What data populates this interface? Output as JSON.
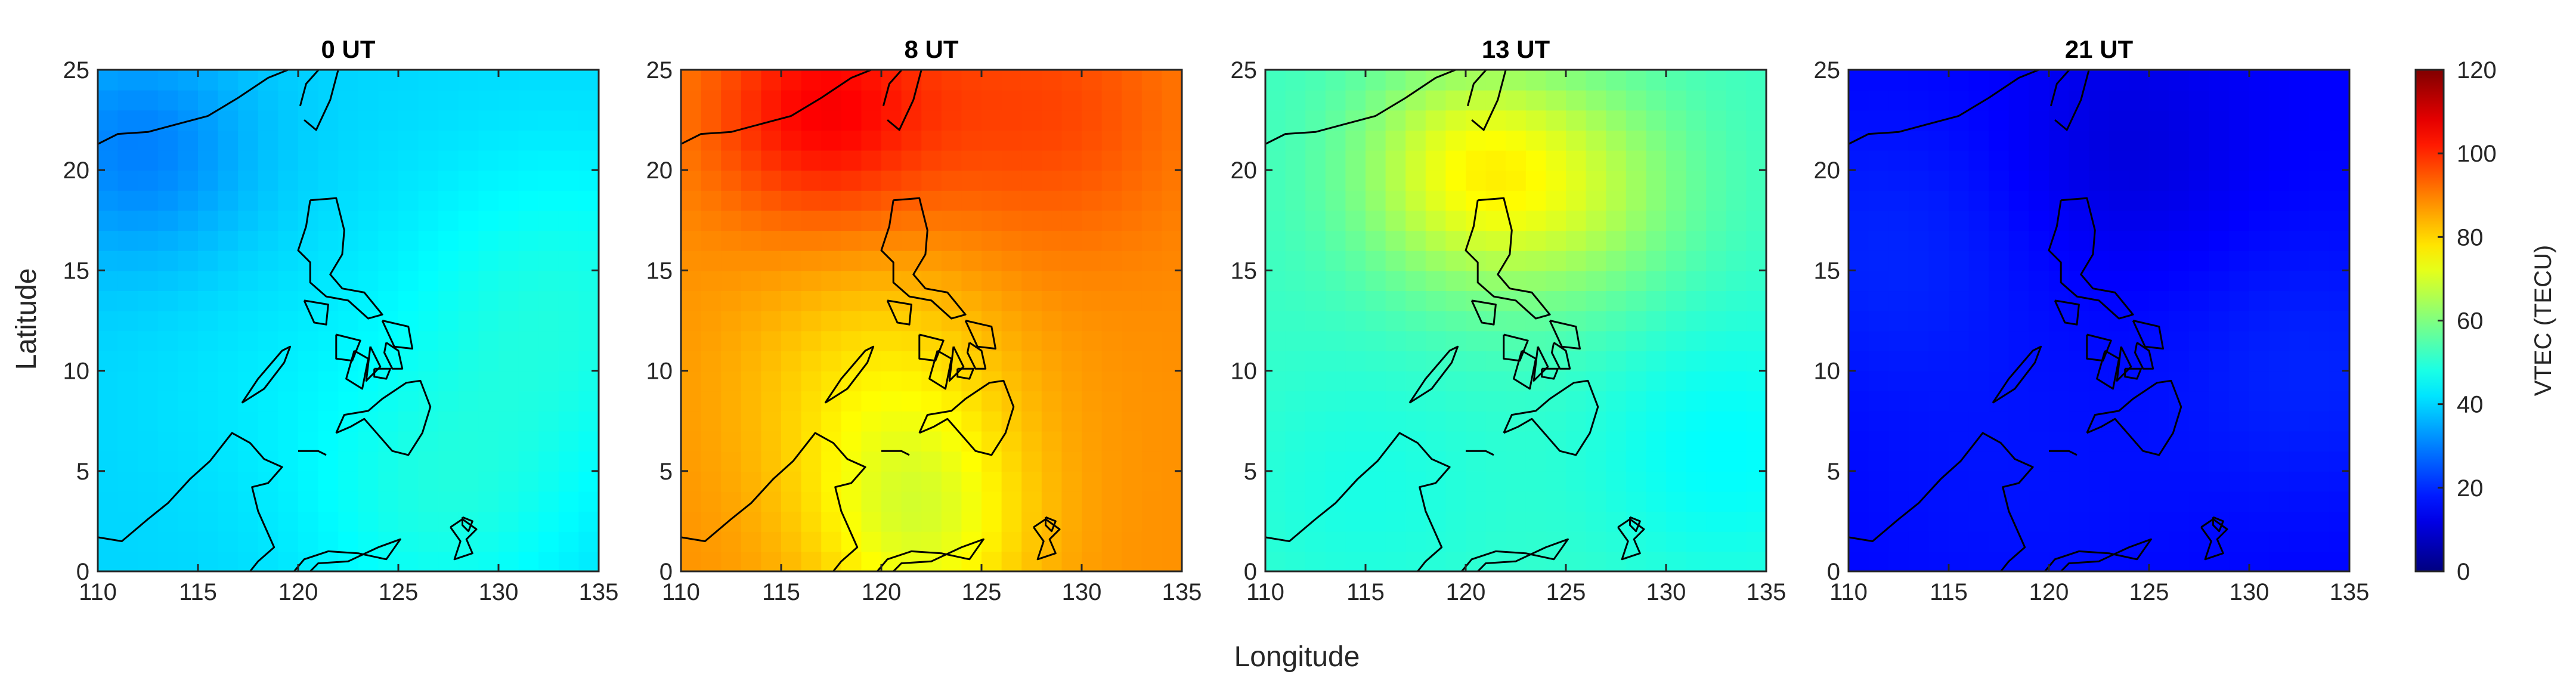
{
  "chart_data": {
    "type": "heatmap",
    "xlabel": "Longitude",
    "ylabel": "Latitude",
    "xlim": [
      110,
      135
    ],
    "ylim": [
      0,
      25
    ],
    "x_ticks": [
      110,
      115,
      120,
      125,
      130,
      135
    ],
    "y_ticks": [
      0,
      5,
      10,
      15,
      20,
      25
    ],
    "colormap": "jet",
    "colorbar": {
      "label": "VTEC (TECU)",
      "range": [
        0,
        120
      ],
      "ticks": [
        0,
        20,
        40,
        60,
        80,
        100,
        120
      ],
      "placement": "right"
    },
    "panels": [
      {
        "title": "0 UT",
        "base": 40,
        "features": [
          {
            "lon": 112,
            "lat": 21,
            "value": 30,
            "spread": 4
          },
          {
            "lon": 133,
            "lat": 13,
            "value": 48,
            "spread": 6
          },
          {
            "lon": 127,
            "lat": 3,
            "value": 47,
            "spread": 5
          },
          {
            "lon": 118,
            "lat": 10,
            "value": 42,
            "spread": 5
          }
        ]
      },
      {
        "title": "8 UT",
        "base": 88,
        "features": [
          {
            "lon": 117,
            "lat": 23,
            "value": 105,
            "spread": 4
          },
          {
            "lon": 128,
            "lat": 23,
            "value": 97,
            "spread": 5
          },
          {
            "lon": 120,
            "lat": 9,
            "value": 78,
            "spread": 5
          },
          {
            "lon": 122,
            "lat": 2,
            "value": 74,
            "spread": 4
          }
        ]
      },
      {
        "title": "13 UT",
        "base": 52,
        "features": [
          {
            "lon": 120,
            "lat": 20,
            "value": 72,
            "spread": 4
          },
          {
            "lon": 126,
            "lat": 19,
            "value": 64,
            "spread": 4
          },
          {
            "lon": 115,
            "lat": 4,
            "value": 48,
            "spread": 5
          },
          {
            "lon": 133,
            "lat": 6,
            "value": 45,
            "spread": 5
          }
        ]
      },
      {
        "title": "21 UT",
        "base": 15,
        "features": [
          {
            "lon": 124,
            "lat": 21,
            "value": 11,
            "spread": 4
          },
          {
            "lon": 112,
            "lat": 16,
            "value": 19,
            "spread": 5
          },
          {
            "lon": 133,
            "lat": 10,
            "value": 19,
            "spread": 5
          },
          {
            "lon": 118,
            "lat": 4,
            "value": 17,
            "spread": 6
          }
        ]
      }
    ],
    "coastlines": [
      {
        "name": "south-china-coast",
        "points": [
          [
            110,
            21.3
          ],
          [
            111,
            21.8
          ],
          [
            112.5,
            21.9
          ],
          [
            114,
            22.3
          ],
          [
            115.5,
            22.7
          ],
          [
            117,
            23.6
          ],
          [
            118.5,
            24.6
          ],
          [
            119.5,
            25
          ]
        ]
      },
      {
        "name": "taiwan",
        "points": [
          [
            120.3,
            22.5
          ],
          [
            120.9,
            22.0
          ],
          [
            121.6,
            23.5
          ],
          [
            122.0,
            25.0
          ],
          [
            121.2,
            25.2
          ],
          [
            120.4,
            24.3
          ],
          [
            120.1,
            23.2
          ]
        ]
      },
      {
        "name": "luzon",
        "points": [
          [
            120.6,
            18.5
          ],
          [
            121.9,
            18.6
          ],
          [
            122.3,
            17.0
          ],
          [
            122.2,
            15.8
          ],
          [
            121.6,
            14.8
          ],
          [
            122.2,
            14.1
          ],
          [
            123.3,
            13.9
          ],
          [
            124.2,
            12.8
          ],
          [
            123.5,
            12.6
          ],
          [
            122.5,
            13.5
          ],
          [
            121.4,
            13.7
          ],
          [
            120.6,
            14.4
          ],
          [
            120.6,
            15.4
          ],
          [
            120.0,
            16.0
          ],
          [
            120.4,
            17.2
          ],
          [
            120.6,
            18.5
          ]
        ]
      },
      {
        "name": "mindoro",
        "points": [
          [
            120.3,
            13.5
          ],
          [
            121.5,
            13.3
          ],
          [
            121.4,
            12.3
          ],
          [
            120.8,
            12.4
          ],
          [
            120.3,
            13.5
          ]
        ]
      },
      {
        "name": "panay",
        "points": [
          [
            121.9,
            11.8
          ],
          [
            123.1,
            11.5
          ],
          [
            122.7,
            10.5
          ],
          [
            121.9,
            10.6
          ],
          [
            121.9,
            11.8
          ]
        ]
      },
      {
        "name": "negros",
        "points": [
          [
            122.8,
            11.0
          ],
          [
            123.5,
            10.6
          ],
          [
            123.2,
            9.1
          ],
          [
            122.4,
            9.6
          ],
          [
            122.8,
            11.0
          ]
        ]
      },
      {
        "name": "cebu",
        "points": [
          [
            123.6,
            11.2
          ],
          [
            124.1,
            10.2
          ],
          [
            123.4,
            9.5
          ],
          [
            123.6,
            11.2
          ]
        ]
      },
      {
        "name": "samar",
        "points": [
          [
            124.2,
            12.5
          ],
          [
            125.5,
            12.2
          ],
          [
            125.7,
            11.1
          ],
          [
            124.8,
            11.2
          ],
          [
            124.2,
            12.5
          ]
        ]
      },
      {
        "name": "leyte",
        "points": [
          [
            124.4,
            11.4
          ],
          [
            125.0,
            11.0
          ],
          [
            125.2,
            10.1
          ],
          [
            124.7,
            10.1
          ],
          [
            124.3,
            10.9
          ],
          [
            124.4,
            11.4
          ]
        ]
      },
      {
        "name": "bohol",
        "points": [
          [
            123.8,
            10.1
          ],
          [
            124.6,
            10.1
          ],
          [
            124.4,
            9.6
          ],
          [
            123.8,
            9.7
          ],
          [
            123.8,
            10.1
          ]
        ]
      },
      {
        "name": "palawan",
        "points": [
          [
            117.2,
            8.4
          ],
          [
            118.3,
            9.1
          ],
          [
            119.3,
            10.4
          ],
          [
            119.6,
            11.2
          ],
          [
            119.2,
            11.0
          ],
          [
            118.0,
            9.6
          ],
          [
            117.2,
            8.4
          ]
        ]
      },
      {
        "name": "mindanao",
        "points": [
          [
            121.9,
            6.9
          ],
          [
            122.3,
            7.8
          ],
          [
            123.5,
            8.0
          ],
          [
            124.2,
            8.6
          ],
          [
            125.4,
            9.4
          ],
          [
            126.1,
            9.5
          ],
          [
            126.6,
            8.2
          ],
          [
            126.2,
            6.9
          ],
          [
            125.5,
            5.8
          ],
          [
            124.7,
            6.0
          ],
          [
            124.0,
            6.8
          ],
          [
            123.3,
            7.6
          ],
          [
            122.6,
            7.2
          ],
          [
            121.9,
            6.9
          ]
        ]
      },
      {
        "name": "borneo-north",
        "points": [
          [
            110,
            1.7
          ],
          [
            111.2,
            1.5
          ],
          [
            112.5,
            2.6
          ],
          [
            113.5,
            3.4
          ],
          [
            114.6,
            4.6
          ],
          [
            115.6,
            5.5
          ],
          [
            116.7,
            6.9
          ],
          [
            117.6,
            6.4
          ],
          [
            118.3,
            5.6
          ],
          [
            119.2,
            5.2
          ],
          [
            118.5,
            4.4
          ],
          [
            117.7,
            4.2
          ],
          [
            118.0,
            3.0
          ],
          [
            118.8,
            1.2
          ],
          [
            118.0,
            0.5
          ],
          [
            117.6,
            0
          ]
        ]
      },
      {
        "name": "sulawesi-north",
        "points": [
          [
            119.8,
            0
          ],
          [
            120.3,
            0.6
          ],
          [
            121.5,
            1.0
          ],
          [
            123.0,
            0.9
          ],
          [
            124.4,
            0.6
          ],
          [
            125.1,
            1.6
          ],
          [
            124.0,
            1.2
          ],
          [
            122.5,
            0.5
          ],
          [
            121.0,
            0.4
          ],
          [
            120.6,
            0
          ]
        ]
      },
      {
        "name": "halmahera",
        "points": [
          [
            127.6,
            2.2
          ],
          [
            128.1,
            1.5
          ],
          [
            127.8,
            0.6
          ],
          [
            128.7,
            0.9
          ],
          [
            128.4,
            1.6
          ],
          [
            128.9,
            2.1
          ],
          [
            128.2,
            2.6
          ],
          [
            127.6,
            2.2
          ]
        ]
      },
      {
        "name": "morotai",
        "points": [
          [
            128.2,
            2.7
          ],
          [
            128.7,
            2.5
          ],
          [
            128.5,
            2.0
          ],
          [
            128.2,
            2.3
          ],
          [
            128.2,
            2.7
          ]
        ]
      },
      {
        "name": "sulu-islands",
        "points": [
          [
            120.0,
            6.0
          ],
          [
            121.0,
            6.0
          ],
          [
            121.4,
            5.8
          ]
        ]
      }
    ]
  }
}
